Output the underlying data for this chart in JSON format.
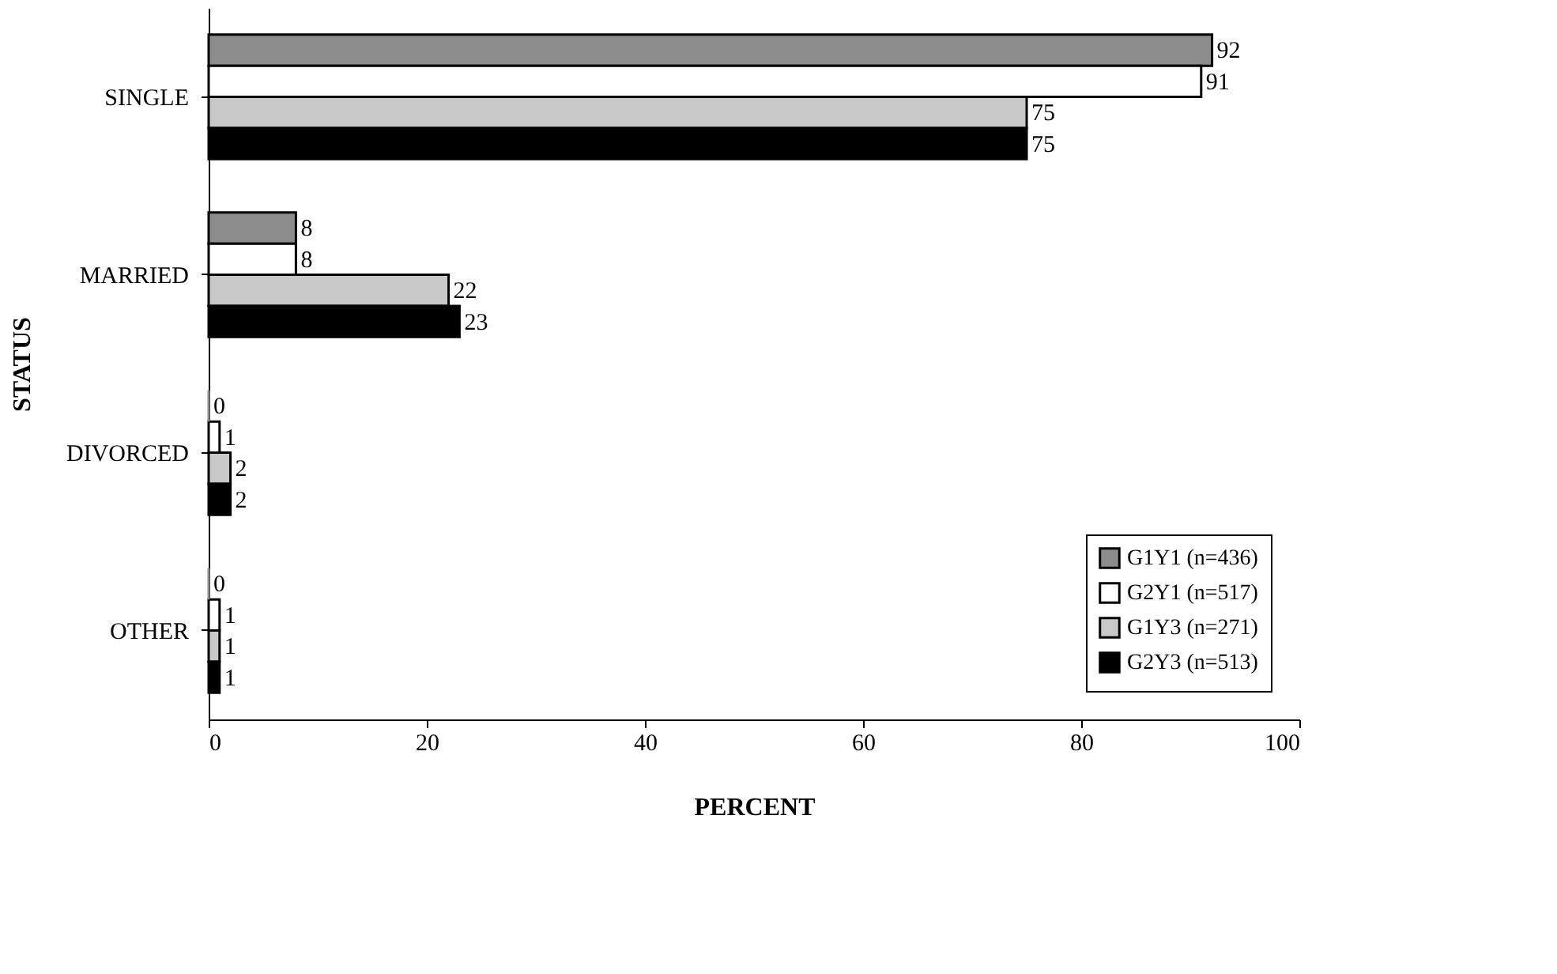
{
  "chart_data": {
    "type": "bar",
    "orientation": "horizontal",
    "xlabel": "PERCENT",
    "ylabel": "STATUS",
    "categories": [
      "SINGLE",
      "MARRIED",
      "DIVORCED",
      "OTHER"
    ],
    "series": [
      {
        "name": "G1Y1 (n=436)",
        "color": "#8c8c8c",
        "values": [
          92,
          8,
          0,
          0
        ]
      },
      {
        "name": "G2Y1 (n=517)",
        "color": "#ffffff",
        "values": [
          91,
          8,
          1,
          1
        ]
      },
      {
        "name": "G1Y3 (n=271)",
        "color": "#c8c8c8",
        "values": [
          75,
          22,
          2,
          1
        ]
      },
      {
        "name": "G2Y3 (n=513)",
        "color": "#000000",
        "values": [
          75,
          23,
          2,
          1
        ]
      }
    ],
    "xlim": [
      0,
      100
    ],
    "xticks": [
      0,
      20,
      40,
      60,
      80,
      100
    ],
    "grid": false,
    "legend": "bottom right",
    "data_labels": true
  }
}
